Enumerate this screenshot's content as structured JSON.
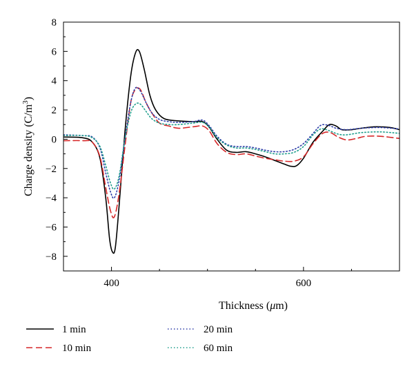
{
  "chart_data": {
    "type": "line",
    "xlabel_main": "Thickness (",
    "xlabel_mu": "μ",
    "xlabel_tail": "m)",
    "ylabel_main": "Charge density (C/m",
    "ylabel_sup": "3",
    "ylabel_tail": ")",
    "xlim": [
      350,
      700
    ],
    "ylim": [
      -9,
      8
    ],
    "x_ticks": [
      400,
      600
    ],
    "y_ticks": [
      -8,
      -6,
      -4,
      -2,
      0,
      2,
      4,
      6,
      8
    ],
    "x_tick_labels": [
      "400",
      "600"
    ],
    "y_tick_labels": [
      "−8",
      "−6",
      "−4",
      "−2",
      "0",
      "2",
      "4",
      "6",
      "8"
    ],
    "grid": false,
    "legend_position": "bottom",
    "series": [
      {
        "name": "1 min",
        "color": "#000000",
        "dash": "solid",
        "x": [
          350,
          370,
          380,
          388,
          394,
          398,
          401,
          404,
          408,
          414,
          420,
          425,
          429,
          434,
          440,
          446,
          455,
          470,
          485,
          495,
          502,
          510,
          520,
          530,
          540,
          550,
          560,
          570,
          580,
          587,
          593,
          600,
          610,
          620,
          627,
          634,
          640,
          650,
          660,
          675,
          690,
          700
        ],
        "y": [
          0.15,
          0.1,
          -0.2,
          -1.3,
          -4.0,
          -6.8,
          -7.7,
          -7.4,
          -4.5,
          0.5,
          4.3,
          5.9,
          6.0,
          4.8,
          3.0,
          2.0,
          1.4,
          1.25,
          1.2,
          1.2,
          0.8,
          0.0,
          -0.75,
          -0.9,
          -0.85,
          -1.0,
          -1.2,
          -1.45,
          -1.7,
          -1.85,
          -1.8,
          -1.3,
          -0.2,
          0.55,
          1.0,
          0.9,
          0.65,
          0.65,
          0.75,
          0.85,
          0.8,
          0.65
        ]
      },
      {
        "name": "10 min",
        "color": "#d62728",
        "dash": "dashed",
        "x": [
          350,
          370,
          380,
          388,
          394,
          399,
          403,
          408,
          414,
          420,
          425,
          430,
          436,
          442,
          450,
          460,
          470,
          485,
          495,
          502,
          510,
          520,
          530,
          540,
          550,
          560,
          570,
          580,
          590,
          600,
          610,
          620,
          628,
          636,
          645,
          655,
          665,
          680,
          700
        ],
        "y": [
          -0.1,
          -0.1,
          -0.2,
          -1.2,
          -3.3,
          -4.9,
          -5.3,
          -3.7,
          -0.5,
          2.5,
          3.4,
          3.4,
          2.5,
          1.8,
          1.1,
          0.9,
          0.75,
          0.85,
          0.9,
          0.55,
          -0.3,
          -0.9,
          -1.05,
          -1.0,
          -1.15,
          -1.3,
          -1.4,
          -1.5,
          -1.5,
          -1.2,
          -0.3,
          0.4,
          0.45,
          0.15,
          -0.05,
          0.05,
          0.2,
          0.2,
          0.05
        ]
      },
      {
        "name": "20 min",
        "color": "#2e3ea8",
        "dash": "dotted",
        "x": [
          350,
          370,
          380,
          388,
          394,
          399,
          403,
          408,
          414,
          420,
          425,
          430,
          436,
          442,
          450,
          460,
          470,
          485,
          495,
          502,
          510,
          520,
          530,
          540,
          550,
          560,
          570,
          580,
          590,
          600,
          610,
          618,
          626,
          634,
          645,
          660,
          680,
          700
        ],
        "y": [
          0.3,
          0.25,
          0.15,
          -0.6,
          -2.3,
          -3.6,
          -4.0,
          -2.8,
          0.0,
          2.5,
          3.5,
          3.3,
          2.5,
          1.8,
          1.35,
          1.2,
          1.15,
          1.2,
          1.3,
          0.9,
          0.2,
          -0.35,
          -0.5,
          -0.5,
          -0.6,
          -0.75,
          -0.85,
          -0.85,
          -0.7,
          -0.3,
          0.4,
          0.95,
          0.95,
          0.75,
          0.65,
          0.75,
          0.8,
          0.7
        ]
      },
      {
        "name": "60 min",
        "color": "#1f9e8c",
        "dash": "dotted",
        "x": [
          350,
          370,
          380,
          388,
          394,
          399,
          403,
          408,
          414,
          420,
          425,
          430,
          436,
          442,
          450,
          460,
          470,
          485,
          495,
          502,
          510,
          520,
          530,
          540,
          550,
          560,
          570,
          580,
          590,
          600,
          610,
          618,
          626,
          636,
          645,
          660,
          680,
          700
        ],
        "y": [
          0.25,
          0.25,
          0.1,
          -0.5,
          -1.8,
          -3.0,
          -3.4,
          -2.5,
          0.0,
          1.8,
          2.4,
          2.4,
          1.9,
          1.4,
          1.1,
          1.0,
          1.0,
          1.1,
          1.15,
          0.8,
          0.1,
          -0.4,
          -0.6,
          -0.6,
          -0.7,
          -0.85,
          -1.0,
          -1.0,
          -0.9,
          -0.5,
          0.3,
          0.7,
          0.6,
          0.35,
          0.3,
          0.45,
          0.5,
          0.4
        ]
      }
    ]
  }
}
